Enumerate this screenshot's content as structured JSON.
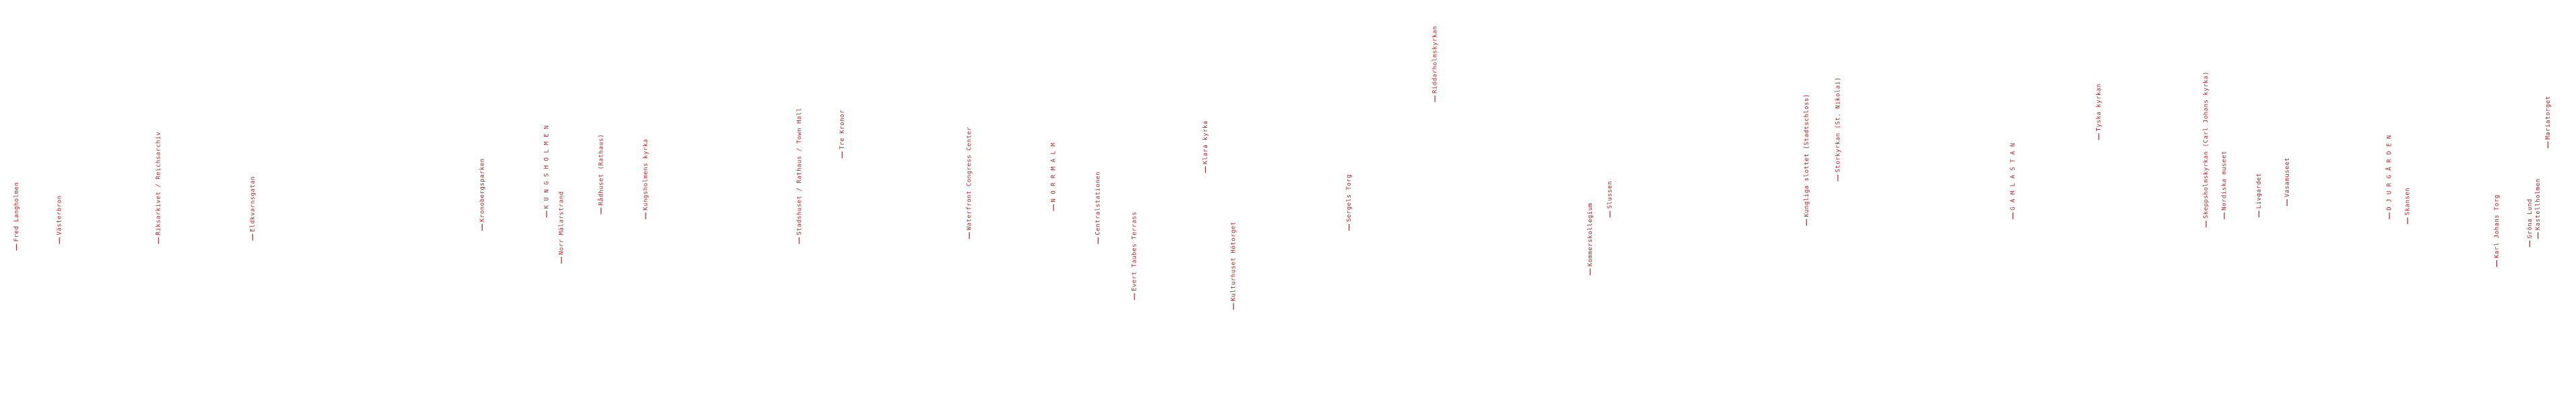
{
  "labels": [
    "Fred Langholmen",
    "Västerbron",
    "Riksarkivet / Reichsarchiv",
    "Eldkvarnsgatan",
    "Kronobergsparken",
    "K U N G S H O L M E N",
    "Norr Mälarstrand",
    "Rådhuset (Rathaus)",
    "Kungsholmens kyrka",
    "Stadshuset / Rathaus / Town Hall",
    "Tre Kronor",
    "Waterfront Congress Center",
    "N O R R M A L M",
    "Centralstationen",
    "Evert Taubes Terrass",
    "Klara kyrka",
    "Kulturhuset Hötorget",
    "Sergels Torg",
    "Riddarholmskyrkan",
    "Kommerskollegium",
    "Slussen",
    "Kungliga slottet (Stadtschloss)",
    "Storkyrkan (St. Nikolai)",
    "G A M L A  S T A N",
    "Tyska kyrkan",
    "Skeppsholmskyrkan (Carl Johans kyrka)",
    "Nordiska museet",
    "Livgardet",
    "Vasamuseet",
    "D J U R G Å R D E N",
    "Skansen",
    "Karl Johans Torg",
    "Gröna Lund",
    "Kastellholmen",
    "Mariatorget"
  ]
}
